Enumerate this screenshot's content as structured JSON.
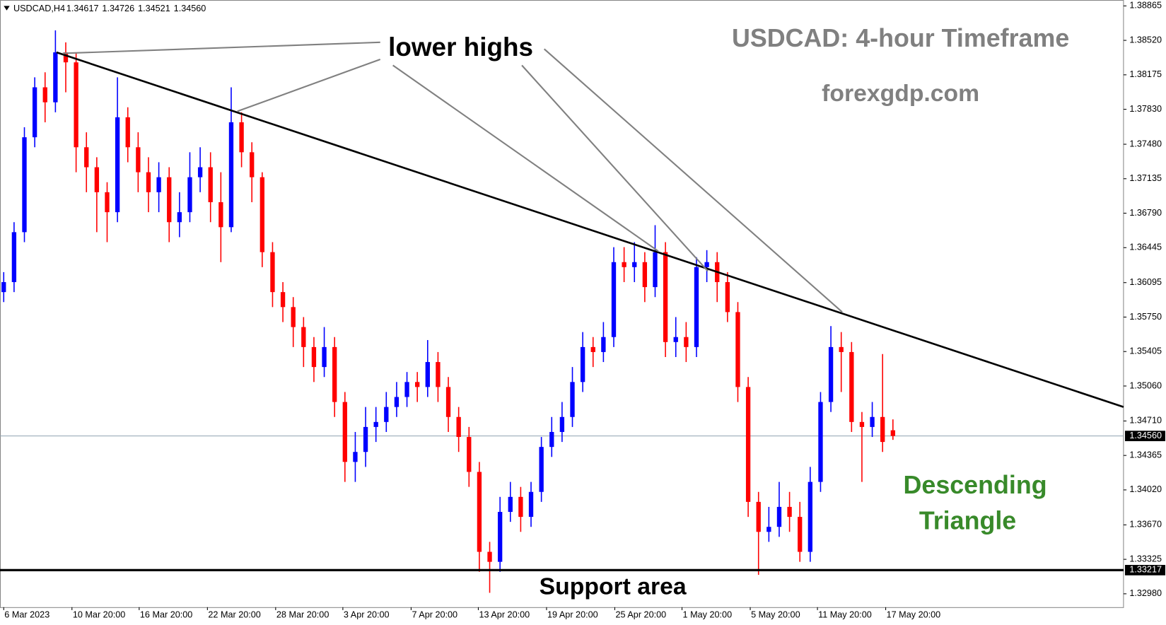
{
  "chart_data": {
    "type": "candlestick",
    "symbol": "USDCAD,H4",
    "title": "USDCAD: 4-hour Timeframe",
    "subtitle": "forexgdp.com",
    "annotations": {
      "lower_highs": "lower highs",
      "pattern_line1": "Descending",
      "pattern_line2": "Triangle",
      "support": "Support area"
    },
    "bull_color": "#0000ff",
    "bear_color": "#ff0000",
    "open": [
      1.36,
      1.361,
      1.366,
      1.3755,
      1.3805,
      1.379,
      1.384,
      1.383,
      1.3745,
      1.3725,
      1.37,
      1.368,
      1.3775,
      1.3745,
      1.372,
      1.37,
      1.3715,
      1.367,
      1.368,
      1.3715,
      1.3725,
      1.369,
      1.3665,
      1.377,
      1.374,
      1.3715,
      1.364,
      1.36,
      1.3585,
      1.3565,
      1.3545,
      1.3525,
      1.3545,
      1.349,
      1.343,
      1.344,
      1.3465,
      1.347,
      1.3485,
      1.3495,
      1.351,
      1.3505,
      1.353,
      1.3505,
      1.3475,
      1.3455,
      1.342,
      1.334,
      1.333,
      1.338,
      1.3395,
      1.3375,
      1.34,
      1.3445,
      1.346,
      1.3475,
      1.351,
      1.3545,
      1.354,
      1.3555,
      1.363,
      1.3625,
      1.363,
      1.3605,
      1.364,
      1.355,
      1.3555,
      1.3545,
      1.3625,
      1.363,
      1.361,
      1.358,
      1.3505,
      1.339,
      1.336,
      1.3365,
      1.3385,
      1.3375,
      1.334,
      1.341,
      1.349,
      1.3545,
      1.354,
      1.347,
      1.3465,
      1.3475,
      1.34617
    ],
    "high": [
      1.362,
      1.367,
      1.3765,
      1.3815,
      1.382,
      1.3862,
      1.385,
      1.384,
      1.376,
      1.3735,
      1.371,
      1.3815,
      1.3785,
      1.376,
      1.3735,
      1.373,
      1.3725,
      1.37,
      1.374,
      1.3745,
      1.374,
      1.372,
      1.3805,
      1.378,
      1.375,
      1.372,
      1.365,
      1.361,
      1.3595,
      1.3575,
      1.3555,
      1.3565,
      1.3555,
      1.35,
      1.346,
      1.3485,
      1.3485,
      1.35,
      1.351,
      1.352,
      1.352,
      1.3552,
      1.354,
      1.3515,
      1.3485,
      1.3465,
      1.343,
      1.335,
      1.3395,
      1.341,
      1.3405,
      1.341,
      1.3455,
      1.3475,
      1.349,
      1.3525,
      1.356,
      1.3555,
      1.357,
      1.3645,
      1.3645,
      1.365,
      1.364,
      1.3667,
      1.365,
      1.3575,
      1.357,
      1.3635,
      1.3642,
      1.364,
      1.362,
      1.359,
      1.3515,
      1.34,
      1.3385,
      1.341,
      1.34,
      1.339,
      1.3425,
      1.35,
      1.3566,
      1.356,
      1.355,
      1.348,
      1.349,
      1.3538,
      1.34726
    ],
    "low": [
      1.359,
      1.36,
      1.365,
      1.3745,
      1.377,
      1.378,
      1.38,
      1.372,
      1.37,
      1.366,
      1.365,
      1.367,
      1.373,
      1.37,
      1.368,
      1.368,
      1.365,
      1.3655,
      1.367,
      1.37,
      1.367,
      1.363,
      1.366,
      1.3725,
      1.369,
      1.3625,
      1.3585,
      1.357,
      1.3545,
      1.3525,
      1.351,
      1.3515,
      1.3475,
      1.341,
      1.341,
      1.3425,
      1.345,
      1.346,
      1.3475,
      1.3485,
      1.349,
      1.3495,
      1.349,
      1.346,
      1.344,
      1.3405,
      1.332,
      1.3299,
      1.332,
      1.337,
      1.336,
      1.3365,
      1.339,
      1.3435,
      1.345,
      1.3465,
      1.35,
      1.3525,
      1.353,
      1.3545,
      1.361,
      1.361,
      1.359,
      1.3595,
      1.3535,
      1.3535,
      1.353,
      1.3535,
      1.361,
      1.359,
      1.357,
      1.349,
      1.3375,
      1.3317,
      1.335,
      1.3355,
      1.336,
      1.333,
      1.333,
      1.34,
      1.348,
      1.35,
      1.346,
      1.341,
      1.3455,
      1.344,
      1.34521
    ],
    "close": [
      1.361,
      1.366,
      1.3755,
      1.3805,
      1.379,
      1.384,
      1.383,
      1.3745,
      1.3725,
      1.37,
      1.368,
      1.3775,
      1.3745,
      1.372,
      1.37,
      1.3715,
      1.367,
      1.368,
      1.3715,
      1.3725,
      1.369,
      1.3665,
      1.377,
      1.374,
      1.3715,
      1.364,
      1.36,
      1.3585,
      1.3565,
      1.3545,
      1.3525,
      1.3545,
      1.349,
      1.343,
      1.344,
      1.3465,
      1.347,
      1.3485,
      1.3495,
      1.351,
      1.3505,
      1.353,
      1.3505,
      1.3475,
      1.3455,
      1.342,
      1.334,
      1.333,
      1.338,
      1.3395,
      1.3375,
      1.34,
      1.3445,
      1.346,
      1.3475,
      1.351,
      1.3545,
      1.354,
      1.3555,
      1.363,
      1.3625,
      1.363,
      1.3605,
      1.364,
      1.355,
      1.3555,
      1.3545,
      1.3625,
      1.363,
      1.361,
      1.358,
      1.3505,
      1.339,
      1.336,
      1.3365,
      1.3385,
      1.3375,
      1.334,
      1.341,
      1.349,
      1.3545,
      1.354,
      1.347,
      1.3465,
      1.3475,
      1.345,
      1.3456
    ],
    "current_price": {
      "value": 1.3456,
      "label": "1.34560"
    },
    "support": 1.33217,
    "trendline": {
      "x": [
        5.1,
        108.3
      ],
      "y": [
        1.384,
        1.3485
      ]
    },
    "lower_high_points": {
      "x": [
        5.7,
        22.6,
        63.3,
        68.1,
        81.1
      ],
      "y": [
        1.3839,
        1.3781,
        1.3641,
        1.3621,
        1.358
      ]
    },
    "xlim": [
      -0.36,
      108.3
    ],
    "xticks": [
      {
        "value": 0,
        "label": "6 Mar 2023"
      },
      {
        "value": 6.6,
        "label": "10 Mar 20:00"
      },
      {
        "value": 13.1,
        "label": "16 Mar 20:00"
      },
      {
        "value": 19.7,
        "label": "22 Mar 20:00"
      },
      {
        "value": 26.3,
        "label": "28 Mar 20:00"
      },
      {
        "value": 32.8,
        "label": "3 Apr 20:00"
      },
      {
        "value": 39.4,
        "label": "7 Apr 20:00"
      },
      {
        "value": 45.9,
        "label": "13 Apr 20:00"
      },
      {
        "value": 52.5,
        "label": "19 Apr 20:00"
      },
      {
        "value": 59.1,
        "label": "25 Apr 20:00"
      },
      {
        "value": 65.6,
        "label": "1 May 20:00"
      },
      {
        "value": 72.2,
        "label": "5 May 20:00"
      },
      {
        "value": 78.7,
        "label": "11 May 20:00"
      },
      {
        "value": 85.3,
        "label": "17 May 20:00"
      }
    ],
    "ylim": [
      1.32846,
      1.38924
    ],
    "yticks": [
      1.38865,
      {
        "value": 1.3852,
        "label": "1.38520"
      },
      1.38175,
      {
        "value": 1.3783,
        "label": "1.37830"
      },
      {
        "value": 1.3748,
        "label": "1.37480"
      },
      1.37135,
      {
        "value": 1.3679,
        "label": "1.36790"
      },
      1.36445,
      1.36095,
      {
        "value": 1.3575,
        "label": "1.35750"
      },
      1.35405,
      {
        "value": 1.3506,
        "label": "1.35060"
      },
      {
        "value": 1.3471,
        "label": "1.34710"
      },
      1.34365,
      {
        "value": 1.3402,
        "label": "1.34020"
      },
      {
        "value": 1.3367,
        "label": "1.33670"
      },
      1.33325,
      {
        "value": 1.3298,
        "label": "1.32980"
      }
    ]
  }
}
